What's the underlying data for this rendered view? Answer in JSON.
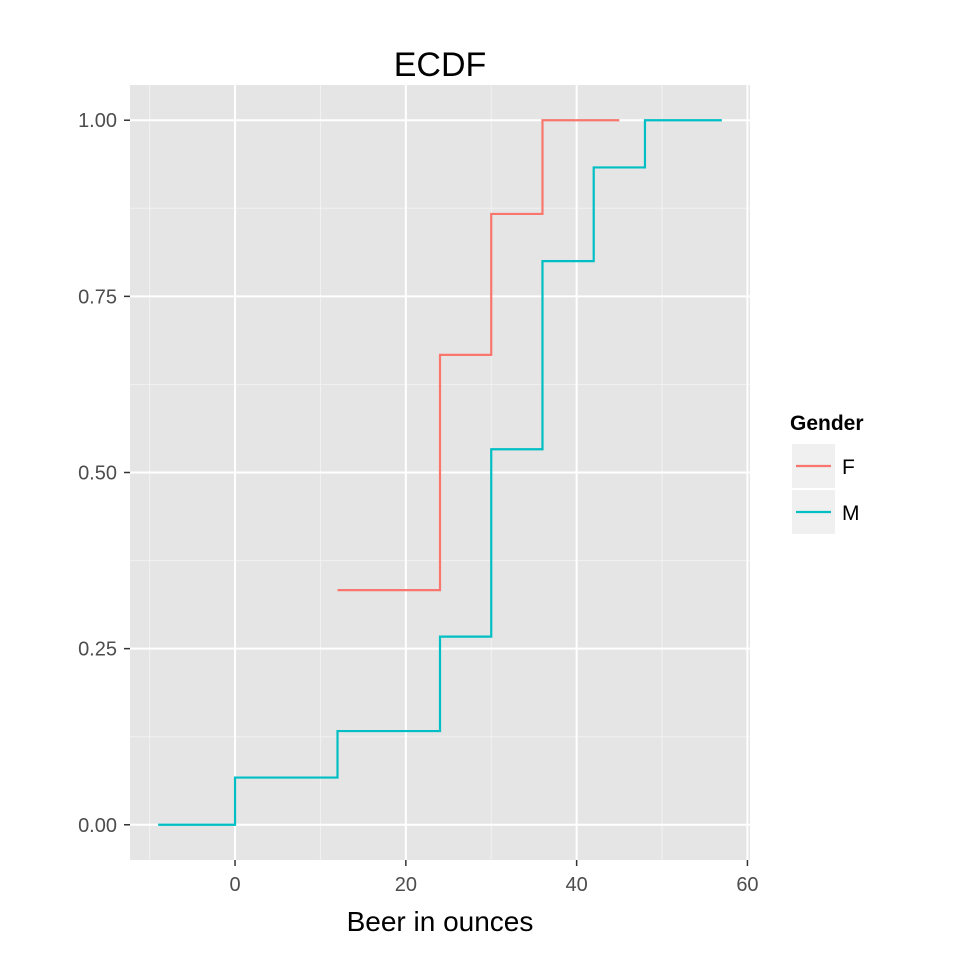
{
  "chart_data": {
    "type": "line",
    "step": true,
    "title": "ECDF",
    "xlabel": "Beer in ounces",
    "ylabel": "",
    "xlim": [
      -12.3,
      60.3
    ],
    "ylim": [
      -0.05,
      1.05
    ],
    "x_ticks": [
      0,
      20,
      40,
      60
    ],
    "x_tick_labels": [
      "0",
      "20",
      "40",
      "60"
    ],
    "x_minor_ticks": [
      -10,
      10,
      30,
      50
    ],
    "y_ticks": [
      0,
      0.25,
      0.5,
      0.75,
      1.0
    ],
    "y_tick_labels": [
      "0.00",
      "0.25",
      "0.50",
      "0.75",
      "1.00"
    ],
    "y_minor_ticks": [
      0.125,
      0.375,
      0.625,
      0.875
    ],
    "grid": true,
    "background": "#e5e5e5",
    "legend": {
      "title": "Gender",
      "position": "right"
    },
    "series": [
      {
        "name": "F",
        "color": "#f8766d",
        "x": [
          12,
          24,
          30,
          36,
          45
        ],
        "y": [
          0.333,
          0.667,
          0.867,
          1.0,
          1.0
        ]
      },
      {
        "name": "M",
        "color": "#00bfc4",
        "x": [
          -9,
          0,
          12,
          24,
          30,
          36,
          42,
          48,
          57
        ],
        "y": [
          0,
          0.067,
          0.133,
          0.267,
          0.533,
          0.8,
          0.933,
          1.0,
          1.0
        ]
      }
    ]
  }
}
